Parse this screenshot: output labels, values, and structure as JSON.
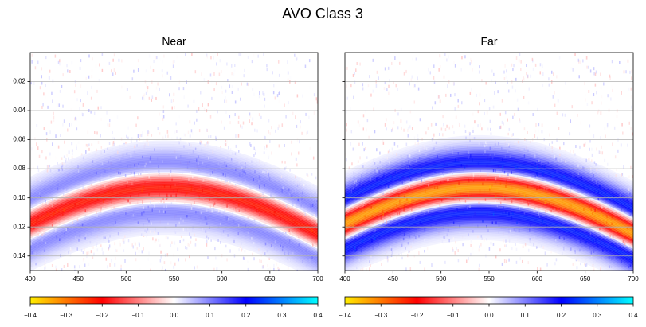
{
  "title": "AVO Class 3",
  "chart_data": [
    {
      "type": "heatmap",
      "title": "Near",
      "xlim": [
        400,
        700
      ],
      "xticks": [
        400,
        450,
        500,
        550,
        600,
        650,
        700
      ],
      "ylim": [
        0.15,
        0.0
      ],
      "yticks": [
        0.02,
        0.04,
        0.06,
        0.08,
        {
          "value": 0.1,
          "label": "0.10"
        },
        0.12,
        0.14
      ],
      "grid": true,
      "colormap": [
        "#ffee00",
        "#ff0000",
        "#ffffff",
        "#0000ff",
        "#00ffff"
      ],
      "clim": [
        -0.4,
        0.4
      ],
      "colorbar_ticks": [
        {
          "value": -0.4,
          "label": "−0.4"
        },
        {
          "value": -0.3,
          "label": "−0.3"
        },
        {
          "value": -0.2,
          "label": "−0.2"
        },
        {
          "value": -0.1,
          "label": "−0.1"
        },
        {
          "value": 0,
          "label": "0.0"
        },
        0.1,
        0.2,
        0.3,
        0.4
      ]
    },
    {
      "type": "heatmap",
      "title": "Far",
      "xlim": [
        400,
        700
      ],
      "xticks": [
        400,
        450,
        500,
        550,
        600,
        650,
        700
      ],
      "ylim": [
        0.15,
        0.0
      ],
      "yticks": [
        0.02,
        0.04,
        0.06,
        0.08,
        0.1,
        0.12,
        0.14
      ],
      "grid": true,
      "colormap": [
        "#ffee00",
        "#ff0000",
        "#ffffff",
        "#0000ff",
        "#00ffff"
      ],
      "clim": [
        -0.4,
        0.4
      ],
      "colorbar_ticks": [
        {
          "value": -0.4,
          "label": "−0.4"
        },
        {
          "value": -0.3,
          "label": "−0.3"
        },
        {
          "value": -0.2,
          "label": "−0.2"
        },
        {
          "value": -0.1,
          "label": "−0.1"
        },
        {
          "value": 0,
          "label": "0.0"
        },
        0.1,
        0.2,
        0.3,
        0.4
      ]
    }
  ]
}
